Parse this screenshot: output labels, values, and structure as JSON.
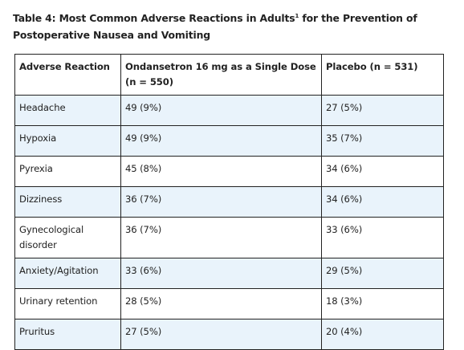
{
  "caption": {
    "prefix": "Table 4: Most Common Adverse Reactions in Adults",
    "superscript": "1",
    "suffix": " for the Prevention of Postoperative Nausea and Vomiting"
  },
  "table": {
    "headers": [
      "Adverse Reaction",
      "Ondansetron 16 mg as a Single Dose (n = 550)",
      "Placebo (n = 531)"
    ],
    "rows": [
      [
        "Headache",
        "49 (9%)",
        "27 (5%)"
      ],
      [
        "Hypoxia",
        "49 (9%)",
        "35 (7%)"
      ],
      [
        "Pyrexia",
        "45 (8%)",
        "34 (6%)"
      ],
      [
        "Dizziness",
        "36 (7%)",
        "34 (6%)"
      ],
      [
        "Gynecological disorder",
        "36 (7%)",
        "33 (6%)"
      ],
      [
        "Anxiety/Agitation",
        "33 (6%)",
        "29 (5%)"
      ],
      [
        "Urinary retention",
        "28 (5%)",
        "18 (3%)"
      ],
      [
        "Pruritus",
        "27 (5%)",
        "20 (4%)"
      ]
    ]
  },
  "colors": {
    "shaded_row": "#e9f3fb",
    "border": "#222222",
    "text": "#222222"
  }
}
